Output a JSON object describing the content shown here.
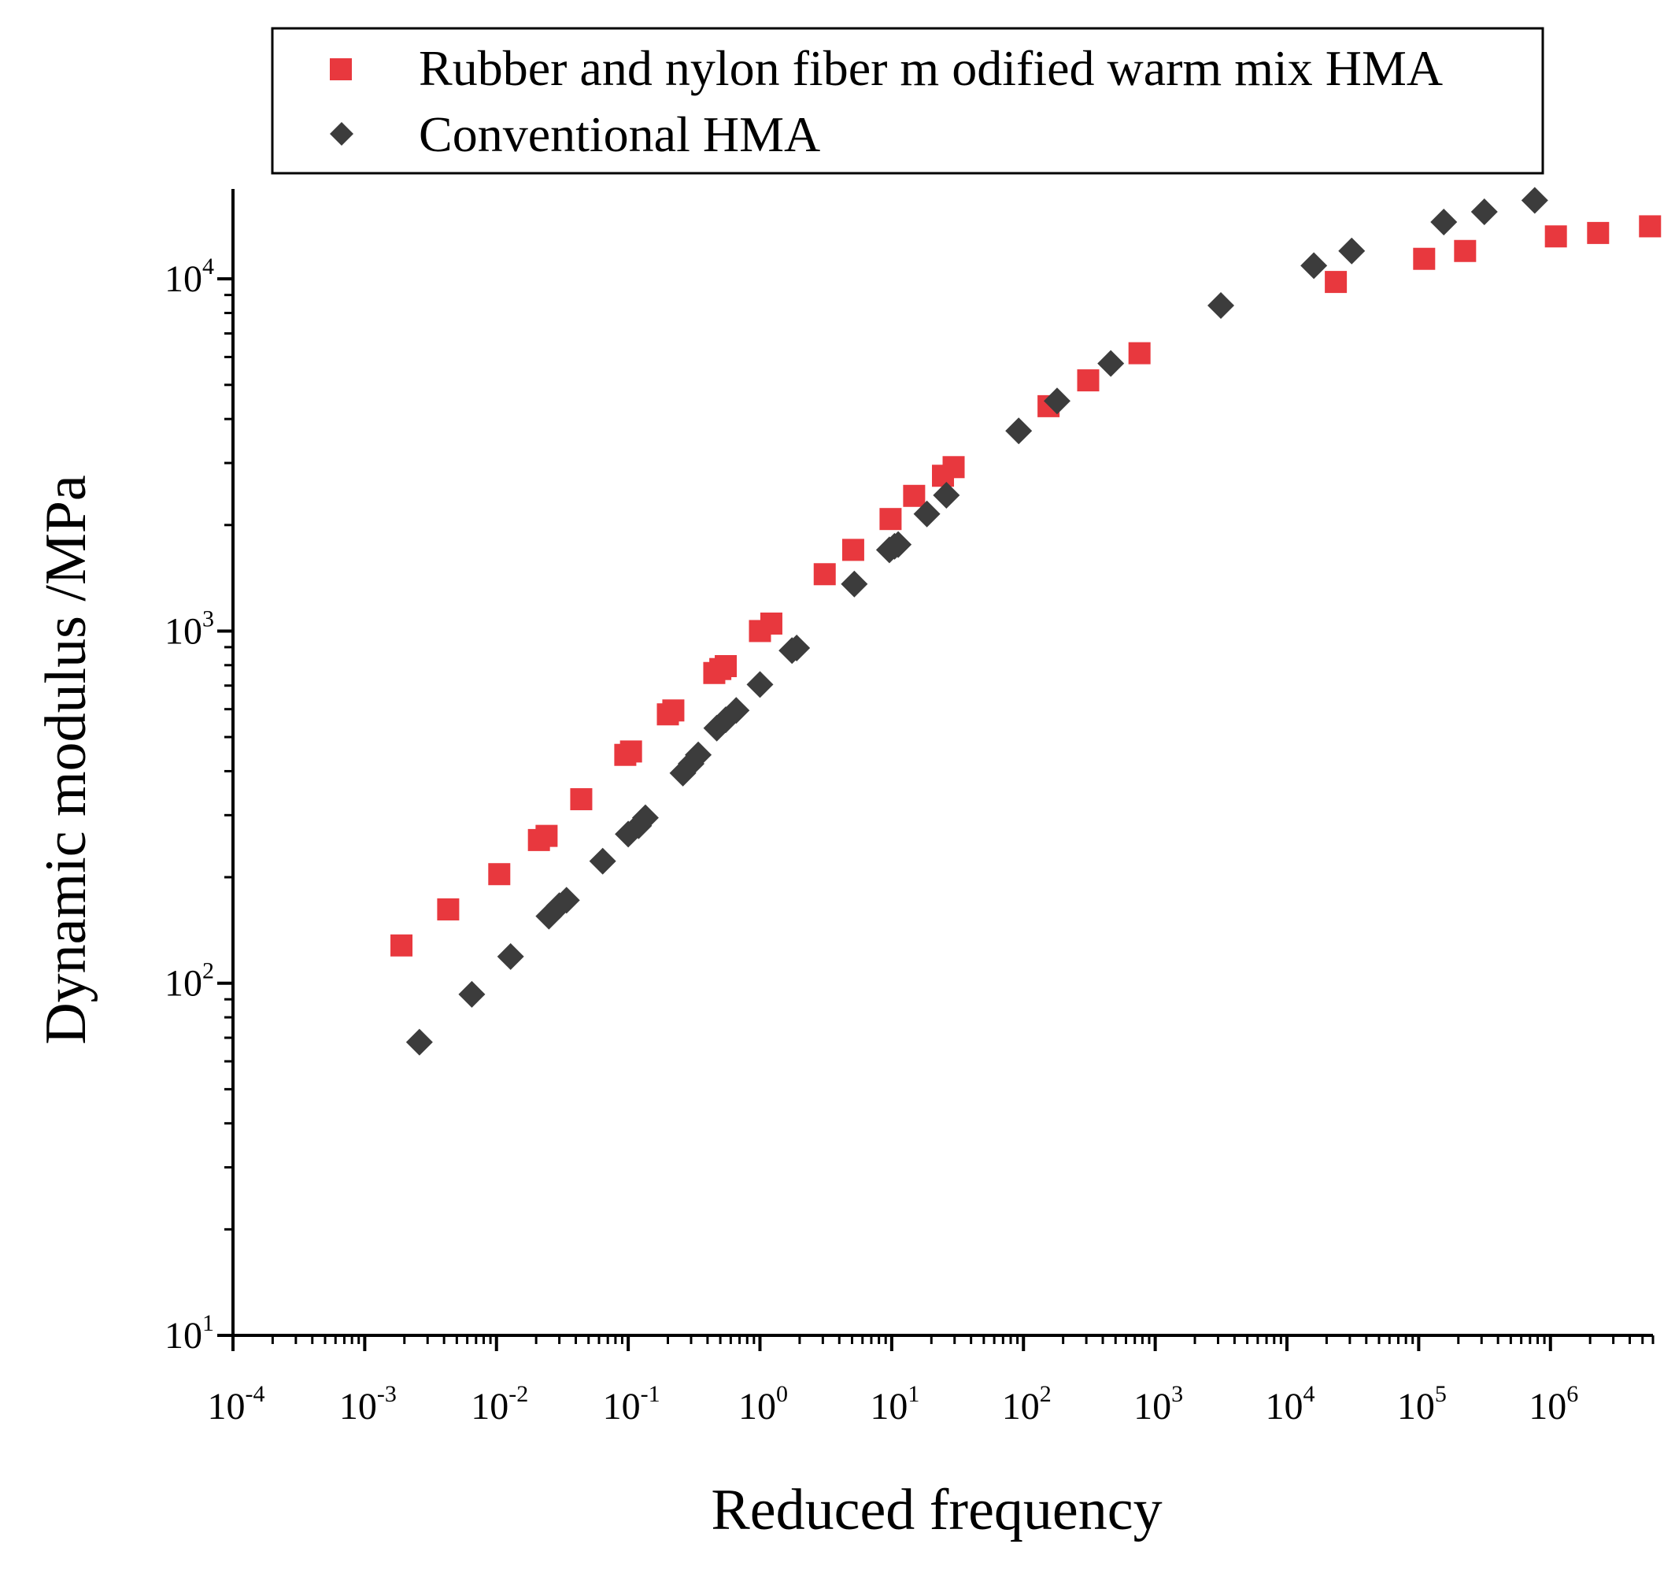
{
  "chart_data": {
    "type": "scatter",
    "xlabel": "Reduced frequency",
    "ylabel": "Dynamic modulus /MPa",
    "x_scale": "log",
    "y_scale": "log",
    "xlim": [
      0.0001,
      6000000
    ],
    "ylim": [
      10,
      18000
    ],
    "x_ticks": [
      {
        "base": "10",
        "exp": "-4",
        "value": 0.0001
      },
      {
        "base": "10",
        "exp": "-3",
        "value": 0.001
      },
      {
        "base": "10",
        "exp": "-2",
        "value": 0.01
      },
      {
        "base": "10",
        "exp": "-1",
        "value": 0.1
      },
      {
        "base": "10",
        "exp": "0",
        "value": 1
      },
      {
        "base": "10",
        "exp": "1",
        "value": 10
      },
      {
        "base": "10",
        "exp": "2",
        "value": 100
      },
      {
        "base": "10",
        "exp": "3",
        "value": 1000
      },
      {
        "base": "10",
        "exp": "4",
        "value": 10000
      },
      {
        "base": "10",
        "exp": "5",
        "value": 100000
      },
      {
        "base": "10",
        "exp": "6",
        "value": 1000000
      }
    ],
    "y_ticks": [
      {
        "base": "10",
        "exp": "1",
        "value": 10
      },
      {
        "base": "10",
        "exp": "2",
        "value": 100
      },
      {
        "base": "10",
        "exp": "3",
        "value": 1000
      },
      {
        "base": "10",
        "exp": "4",
        "value": 10000
      }
    ],
    "legend_position": "top",
    "series": [
      {
        "name": "Rubber and nylon fiber m odified warm mix HMA",
        "marker": "square",
        "color": "#e8383e",
        "points": [
          {
            "x": 0.0019,
            "y": 128
          },
          {
            "x": 0.0043,
            "y": 162
          },
          {
            "x": 0.0105,
            "y": 204
          },
          {
            "x": 0.021,
            "y": 255
          },
          {
            "x": 0.024,
            "y": 262
          },
          {
            "x": 0.044,
            "y": 333
          },
          {
            "x": 0.095,
            "y": 445
          },
          {
            "x": 0.105,
            "y": 455
          },
          {
            "x": 0.2,
            "y": 580
          },
          {
            "x": 0.22,
            "y": 595
          },
          {
            "x": 0.45,
            "y": 760
          },
          {
            "x": 0.5,
            "y": 780
          },
          {
            "x": 0.55,
            "y": 795
          },
          {
            "x": 1.0,
            "y": 1000
          },
          {
            "x": 1.22,
            "y": 1050
          },
          {
            "x": 3.1,
            "y": 1450
          },
          {
            "x": 5.1,
            "y": 1700
          },
          {
            "x": 9.8,
            "y": 2080
          },
          {
            "x": 14.8,
            "y": 2420
          },
          {
            "x": 24.5,
            "y": 2760
          },
          {
            "x": 29.5,
            "y": 2920
          },
          {
            "x": 155,
            "y": 4350
          },
          {
            "x": 310,
            "y": 5150
          },
          {
            "x": 760,
            "y": 6150
          },
          {
            "x": 23500,
            "y": 9800
          },
          {
            "x": 110000,
            "y": 11400
          },
          {
            "x": 225000,
            "y": 12000
          },
          {
            "x": 1100000,
            "y": 13200
          },
          {
            "x": 2300000,
            "y": 13500
          },
          {
            "x": 5700000,
            "y": 14100
          }
        ]
      },
      {
        "name": "Conventional HMA",
        "marker": "diamond",
        "color": "#3c3c3c",
        "points": [
          {
            "x": 0.0026,
            "y": 68
          },
          {
            "x": 0.0065,
            "y": 93
          },
          {
            "x": 0.0128,
            "y": 119
          },
          {
            "x": 0.025,
            "y": 155
          },
          {
            "x": 0.03,
            "y": 166
          },
          {
            "x": 0.034,
            "y": 172
          },
          {
            "x": 0.064,
            "y": 222
          },
          {
            "x": 0.1,
            "y": 265
          },
          {
            "x": 0.12,
            "y": 280
          },
          {
            "x": 0.135,
            "y": 295
          },
          {
            "x": 0.26,
            "y": 395
          },
          {
            "x": 0.3,
            "y": 420
          },
          {
            "x": 0.34,
            "y": 445
          },
          {
            "x": 0.47,
            "y": 530
          },
          {
            "x": 0.55,
            "y": 560
          },
          {
            "x": 0.66,
            "y": 595
          },
          {
            "x": 1.0,
            "y": 705
          },
          {
            "x": 1.75,
            "y": 880
          },
          {
            "x": 1.9,
            "y": 895
          },
          {
            "x": 5.2,
            "y": 1360
          },
          {
            "x": 9.6,
            "y": 1700
          },
          {
            "x": 10.5,
            "y": 1740
          },
          {
            "x": 11.2,
            "y": 1760
          },
          {
            "x": 18.5,
            "y": 2150
          },
          {
            "x": 26,
            "y": 2430
          },
          {
            "x": 92,
            "y": 3700
          },
          {
            "x": 180,
            "y": 4500
          },
          {
            "x": 460,
            "y": 5750
          },
          {
            "x": 3150,
            "y": 8400
          },
          {
            "x": 16000,
            "y": 10900
          },
          {
            "x": 31000,
            "y": 12000
          },
          {
            "x": 155000,
            "y": 14500
          },
          {
            "x": 315000,
            "y": 15500
          },
          {
            "x": 760000,
            "y": 16700
          }
        ]
      }
    ]
  }
}
